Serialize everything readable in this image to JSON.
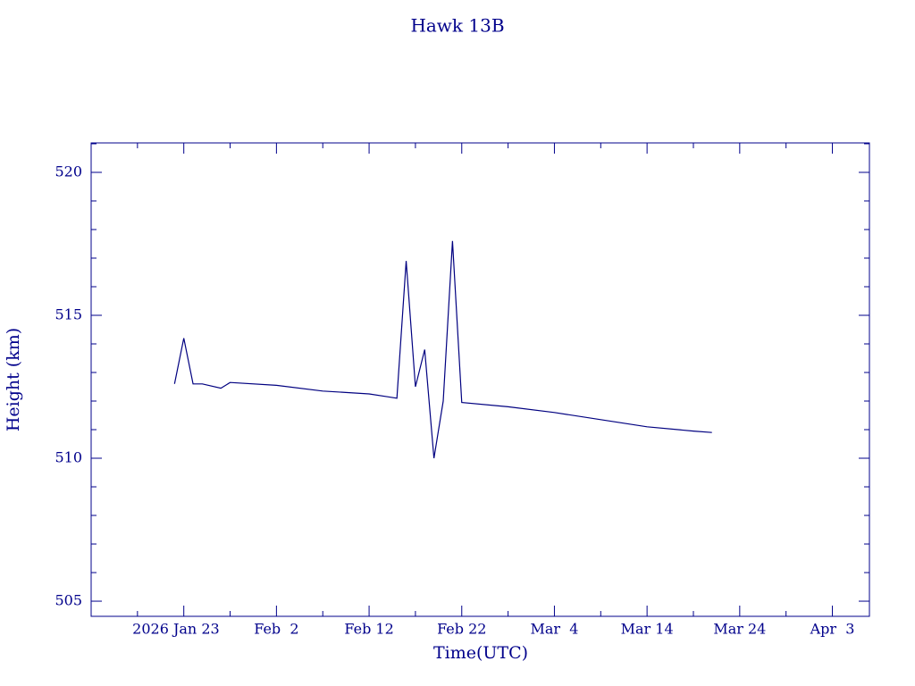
{
  "chart_data": {
    "type": "line",
    "title": "Hawk 13B",
    "x_label": "Time(UTC)",
    "y_label": "Height (km)",
    "x": [
      "2026-01-22",
      "2026-01-23",
      "2026-01-24",
      "2026-01-25",
      "2026-01-27",
      "2026-01-28",
      "2026-02-02",
      "2026-02-07",
      "2026-02-12",
      "2026-02-14",
      "2026-02-15",
      "2026-02-16",
      "2026-02-17",
      "2026-02-18",
      "2026-02-19",
      "2026-02-20",
      "2026-02-21",
      "2026-02-22",
      "2026-02-27",
      "2026-03-04",
      "2026-03-09",
      "2026-03-14",
      "2026-03-19",
      "2026-03-21"
    ],
    "series": [
      {
        "name": "Hawk 13B",
        "color": "#000080",
        "values": [
          512.6,
          514.2,
          512.6,
          512.6,
          512.45,
          512.65,
          512.55,
          512.35,
          512.25,
          512.15,
          512.1,
          516.9,
          512.5,
          513.8,
          510.0,
          512.0,
          517.6,
          511.95,
          511.8,
          511.6,
          511.35,
          511.1,
          510.95,
          510.9
        ]
      }
    ],
    "xlim": [
      "2026-01-13",
      "2026-04-07"
    ],
    "xticks": [
      {
        "value": "2026-01-23",
        "label": "2026 Jan 23"
      },
      {
        "value": "2026-02-02",
        "label": "Feb  2"
      },
      {
        "value": "2026-02-12",
        "label": "Feb 12"
      },
      {
        "value": "2026-02-22",
        "label": "Feb 22"
      },
      {
        "value": "2026-03-04",
        "label": "Mar  4"
      },
      {
        "value": "2026-03-14",
        "label": "Mar 14"
      },
      {
        "value": "2026-03-24",
        "label": "Mar 24"
      },
      {
        "value": "2026-04-03",
        "label": "Apr  3"
      }
    ],
    "xminor_ticks": [
      "2026-01-18",
      "2026-01-28",
      "2026-02-07",
      "2026-02-17",
      "2026-02-27",
      "2026-03-09",
      "2026-03-19",
      "2026-03-29"
    ],
    "ylim": [
      504.47,
      521.03
    ],
    "yticks": [
      505,
      510,
      515,
      520
    ],
    "yminor_ticks": [
      506,
      507,
      508,
      509,
      511,
      512,
      513,
      514,
      516,
      517,
      518,
      519,
      521
    ],
    "grid": false
  }
}
